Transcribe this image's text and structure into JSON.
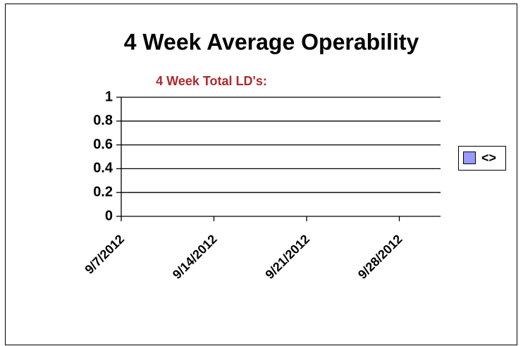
{
  "chart_data": {
    "type": "bar",
    "title": "4 Week Average Operability",
    "subtitle": "4 Week Total LD's:",
    "categories": [
      "9/7/2012",
      "9/14/2012",
      "9/21/2012",
      "9/28/2012"
    ],
    "series": [
      {
        "name": "<>",
        "color": "#9999ff",
        "values": [
          null,
          null,
          null,
          null
        ]
      }
    ],
    "ylim": [
      0,
      1
    ],
    "yticks": [
      0,
      0.2,
      0.4,
      0.6,
      0.8,
      1
    ],
    "grid": true,
    "legend": "right"
  }
}
